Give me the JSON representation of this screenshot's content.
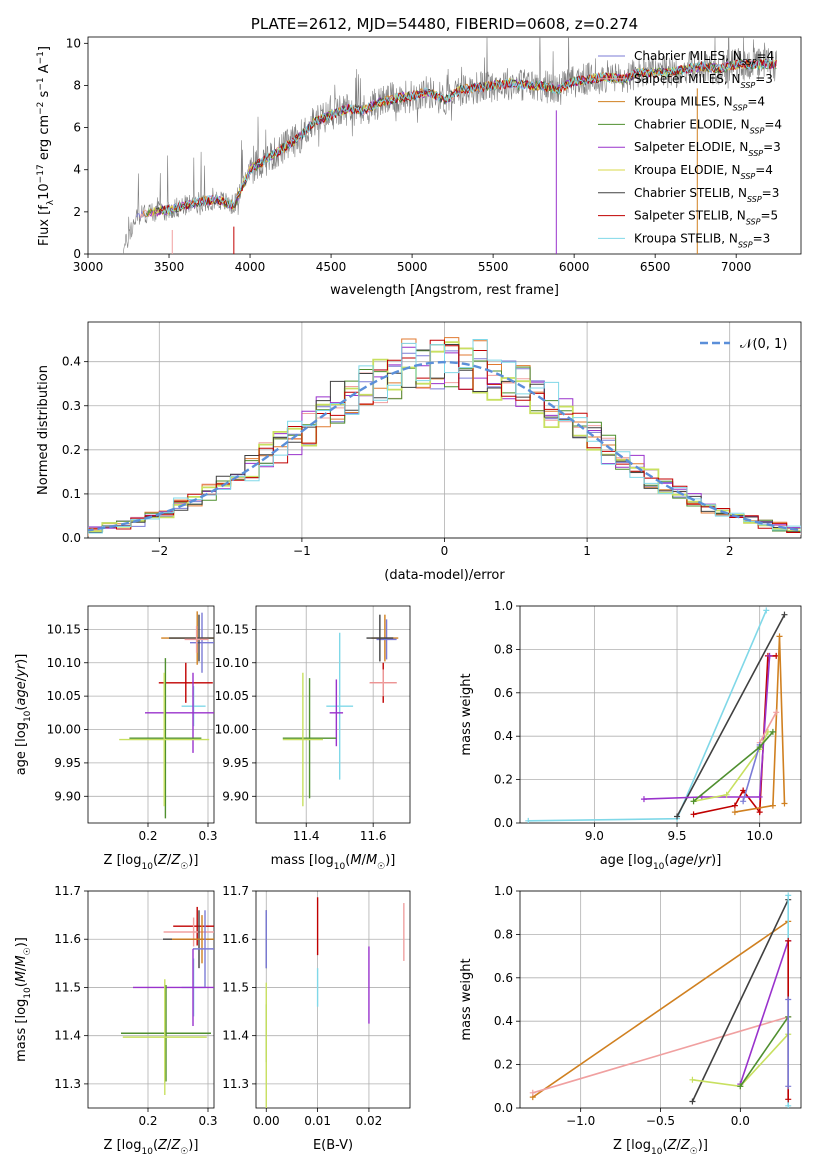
{
  "chart_data": [
    {
      "type": "line",
      "title": "PLATE=2612, MJD=54480, FIBERID=0608, z=0.274",
      "xlabel": "wavelength [Angstrom, rest frame]",
      "ylabel": "Flux [f_λ 10⁻¹⁷ erg cm⁻² s⁻¹ A⁻¹]",
      "xlim": [
        3000,
        7400
      ],
      "ylim": [
        0,
        10.3
      ],
      "xticks": [
        "3000",
        "3500",
        "4000",
        "4500",
        "5000",
        "5500",
        "6000",
        "6500",
        "7000"
      ],
      "yticks": [
        "0",
        "2",
        "4",
        "6",
        "8",
        "10"
      ],
      "grid": false,
      "legend_position": "right",
      "observed_spectrum": {
        "color": "#808080",
        "x": [
          3210,
          3300,
          3400,
          3500,
          3600,
          3700,
          3800,
          3900,
          4000,
          4100,
          4200,
          4300,
          4400,
          4500,
          4600,
          4700,
          4800,
          4900,
          5000,
          5100,
          5200,
          5300,
          5400,
          5500,
          5600,
          5700,
          5800,
          5900,
          6000,
          6100,
          6200,
          6300,
          6400,
          6500,
          6600,
          6700,
          6800,
          6900,
          7000,
          7100,
          7200
        ],
        "y": [
          0.0,
          1.8,
          2.0,
          2.1,
          2.3,
          2.5,
          2.6,
          2.3,
          4.0,
          4.5,
          5.0,
          5.5,
          6.3,
          6.6,
          6.9,
          6.8,
          7.2,
          7.4,
          7.5,
          7.7,
          7.3,
          7.8,
          7.9,
          8.0,
          8.1,
          8.0,
          8.0,
          7.8,
          8.2,
          8.3,
          8.4,
          8.3,
          8.6,
          8.6,
          8.6,
          8.8,
          8.9,
          8.8,
          9.0,
          9.0,
          9.0
        ]
      },
      "series": [
        {
          "name": "Chabrier MILES, N_SSP=4",
          "sub": "SSP",
          "label_a": "Chabrier MILES, N",
          "label_b": "=4",
          "color": "#7b7bd6"
        },
        {
          "name": "Salpeter MILES, N_SSP=3",
          "sub": "SSP",
          "label_a": "Salpeter MILES, N",
          "label_b": "=3",
          "color": "#f0a0a0"
        },
        {
          "name": "Kroupa MILES, N_SSP=4",
          "sub": "SSP",
          "label_a": "Kroupa MILES, N",
          "label_b": "=4",
          "color": "#d08020"
        },
        {
          "name": "Chabrier ELODIE, N_SSP=4",
          "sub": "SSP",
          "label_a": "Chabrier ELODIE, N",
          "label_b": "=4",
          "color": "#4f8f2f"
        },
        {
          "name": "Salpeter ELODIE, N_SSP=3",
          "sub": "SSP",
          "label_a": "Salpeter ELODIE, N",
          "label_b": "=3",
          "color": "#9932cc"
        },
        {
          "name": "Kroupa ELODIE, N_SSP=4",
          "sub": "SSP",
          "label_a": "Kroupa ELODIE, N",
          "label_b": "=4",
          "color": "#d9d94a"
        },
        {
          "name": "Chabrier STELIB, N_SSP=3",
          "sub": "SSP",
          "label_a": "Chabrier STELIB, N",
          "label_b": "=3",
          "color": "#404040"
        },
        {
          "name": "Salpeter STELIB, N_SSP=5",
          "sub": "SSP",
          "label_a": "Salpeter STELIB, N",
          "label_b": "=5",
          "color": "#c00000"
        },
        {
          "name": "Kroupa STELIB, N_SSP=3",
          "sub": "SSP",
          "label_a": "Kroupa STELIB, N",
          "label_b": "=3",
          "color": "#80d8e8"
        }
      ]
    },
    {
      "type": "line",
      "title": "",
      "xlabel": "(data-model)/error",
      "ylabel": "Normed distribution",
      "xlim": [
        -2.5,
        2.5
      ],
      "ylim": [
        0,
        0.49
      ],
      "xticks": [
        "−2",
        "−1",
        "0",
        "1",
        "2"
      ],
      "yticks": [
        "0.0",
        "0.1",
        "0.2",
        "0.3",
        "0.4"
      ],
      "grid": true,
      "legend_position": "top-right",
      "legend_label": "𝒩(0, 1)",
      "normal_curve_color": "#5b8fd9",
      "histogram_colors": [
        "#7b7bd6",
        "#f0a0a0",
        "#e07a30",
        "#4f8f2f",
        "#9932cc",
        "#c8e060",
        "#404040",
        "#c00000",
        "#80d8e8"
      ]
    },
    {
      "type": "scatter",
      "xlabel": "Z [log₁₀(Z/Z☉)]",
      "ylabel": "age  [log₁₀(age/yr)]",
      "xlim": [
        0.1,
        0.31
      ],
      "ylim": [
        9.86,
        10.185
      ],
      "xticks": [
        "0.2",
        "0.3"
      ],
      "yticks": [
        "9.90",
        "9.95",
        "10.00",
        "10.05",
        "10.10",
        "10.15"
      ],
      "grid": true,
      "points": [
        {
          "x": 0.282,
          "y": 10.137,
          "xerr": 0.06,
          "yerr": 0.04,
          "color": "#d08020"
        },
        {
          "x": 0.29,
          "y": 10.13,
          "xerr": 0.02,
          "yerr": 0.045,
          "color": "#7b7bd6"
        },
        {
          "x": 0.285,
          "y": 10.137,
          "xerr": 0.05,
          "yerr": 0.035,
          "color": "#404040"
        },
        {
          "x": 0.281,
          "y": 10.135,
          "xerr": 0.02,
          "yerr": 0.02,
          "color": "#f0a0a0"
        },
        {
          "x": 0.263,
          "y": 10.07,
          "xerr": 0.045,
          "yerr": 0.03,
          "color": "#c00000"
        },
        {
          "x": 0.276,
          "y": 10.035,
          "xerr": 0.02,
          "yerr": 0.03,
          "color": "#80d8e8"
        },
        {
          "x": 0.275,
          "y": 10.025,
          "xerr": 0.08,
          "yerr": 0.06,
          "color": "#9932cc"
        },
        {
          "x": 0.229,
          "y": 9.987,
          "xerr": 0.06,
          "yerr": 0.12,
          "color": "#4f8f2f"
        },
        {
          "x": 0.227,
          "y": 9.985,
          "xerr": 0.075,
          "yerr": 0.1,
          "color": "#c8e060"
        }
      ]
    },
    {
      "type": "scatter",
      "xlabel": "mass [log₁₀(M/M☉)]",
      "ylabel": "",
      "xlim": [
        11.25,
        11.71
      ],
      "ylim": [
        9.86,
        10.185
      ],
      "xticks": [
        "11.4",
        "11.6"
      ],
      "yticks": [
        "9.90",
        "9.95",
        "10.00",
        "10.05",
        "10.10",
        "10.15"
      ],
      "grid": true,
      "points": [
        {
          "x": 11.635,
          "y": 10.137,
          "xerr": 0.04,
          "yerr": 0.035,
          "color": "#d08020"
        },
        {
          "x": 11.64,
          "y": 10.135,
          "xerr": 0.03,
          "yerr": 0.03,
          "color": "#7b7bd6"
        },
        {
          "x": 11.62,
          "y": 10.137,
          "xerr": 0.04,
          "yerr": 0.035,
          "color": "#404040"
        },
        {
          "x": 11.63,
          "y": 10.07,
          "xerr": 0.04,
          "yerr": 0.03,
          "color": "#c00000"
        },
        {
          "x": 11.63,
          "y": 10.07,
          "xerr": 0.04,
          "yerr": 0.02,
          "color": "#f0a0a0"
        },
        {
          "x": 11.5,
          "y": 10.035,
          "xerr": 0.04,
          "yerr": 0.11,
          "color": "#80d8e8"
        },
        {
          "x": 11.49,
          "y": 10.025,
          "xerr": 0.02,
          "yerr": 0.05,
          "color": "#9932cc"
        },
        {
          "x": 11.41,
          "y": 9.987,
          "xerr": 0.08,
          "yerr": 0.09,
          "color": "#4f8f2f"
        },
        {
          "x": 11.39,
          "y": 9.985,
          "xerr": 0.06,
          "yerr": 0.1,
          "color": "#c8e060"
        }
      ]
    },
    {
      "type": "line",
      "xlabel": "age  [log₁₀(age/yr)]",
      "ylabel": "mass weight",
      "xlim": [
        8.55,
        10.25
      ],
      "ylim": [
        0,
        1.0
      ],
      "xticks": [
        "9.0",
        "9.5",
        "10.0"
      ],
      "yticks": [
        "0.0",
        "0.2",
        "0.4",
        "0.6",
        "0.8",
        "1.0"
      ],
      "grid": true,
      "series": [
        {
          "color": "#80d8e8",
          "x": [
            8.6,
            9.5,
            10.04
          ],
          "y": [
            0.01,
            0.02,
            0.98
          ]
        },
        {
          "color": "#404040",
          "x": [
            9.5,
            10.15
          ],
          "y": [
            0.03,
            0.96
          ]
        },
        {
          "color": "#c00000",
          "x": [
            9.6,
            9.85,
            9.9,
            10.0,
            10.05,
            10.1
          ],
          "y": [
            0.04,
            0.08,
            0.15,
            0.05,
            0.77,
            0.77
          ]
        },
        {
          "color": "#d08020",
          "x": [
            9.85,
            10.08,
            10.12,
            10.15
          ],
          "y": [
            0.05,
            0.08,
            0.86,
            0.09
          ]
        },
        {
          "color": "#9932cc",
          "x": [
            9.3,
            9.65,
            10.0,
            10.06
          ],
          "y": [
            0.11,
            0.12,
            0.12,
            0.77
          ]
        },
        {
          "color": "#c8e060",
          "x": [
            9.6,
            9.8,
            10.0,
            10.05
          ],
          "y": [
            0.1,
            0.13,
            0.34,
            0.42
          ]
        },
        {
          "color": "#f0a0a0",
          "x": [
            10.0,
            10.1
          ],
          "y": [
            0.37,
            0.51
          ]
        },
        {
          "color": "#7b7bd6",
          "x": [
            9.9,
            10.0
          ],
          "y": [
            0.1,
            0.36
          ]
        },
        {
          "color": "#4f8f2f",
          "x": [
            9.6,
            10.0,
            10.08
          ],
          "y": [
            0.1,
            0.35,
            0.42
          ]
        }
      ]
    },
    {
      "type": "scatter",
      "xlabel": "Z [log₁₀(Z/Z☉)]",
      "ylabel": "mass [log₁₀(M/M☉)]",
      "xlim": [
        0.1,
        0.31
      ],
      "ylim": [
        11.25,
        11.7
      ],
      "xticks": [
        "0.2",
        "0.3"
      ],
      "yticks": [
        "11.3",
        "11.4",
        "11.5",
        "11.6",
        "11.7"
      ],
      "grid": true,
      "points": [
        {
          "x": 0.282,
          "y": 11.627,
          "xerr": 0.04,
          "yerr": 0.04,
          "color": "#c00000"
        },
        {
          "x": 0.276,
          "y": 11.615,
          "xerr": 0.05,
          "yerr": 0.03,
          "color": "#f0a0a0"
        },
        {
          "x": 0.285,
          "y": 11.6,
          "xerr": 0.06,
          "yerr": 0.06,
          "color": "#404040"
        },
        {
          "x": 0.29,
          "y": 11.6,
          "xerr": 0.05,
          "yerr": 0.05,
          "color": "#d08020"
        },
        {
          "x": 0.295,
          "y": 11.58,
          "xerr": 0.02,
          "yerr": 0.08,
          "color": "#7b7bd6"
        },
        {
          "x": 0.276,
          "y": 11.5,
          "xerr": 0.02,
          "yerr": 0.06,
          "color": "#80d8e8"
        },
        {
          "x": 0.275,
          "y": 11.5,
          "xerr": 0.1,
          "yerr": 0.08,
          "color": "#9932cc"
        },
        {
          "x": 0.23,
          "y": 11.405,
          "xerr": 0.075,
          "yerr": 0.1,
          "color": "#4f8f2f"
        },
        {
          "x": 0.228,
          "y": 11.397,
          "xerr": 0.07,
          "yerr": 0.12,
          "color": "#c8e060"
        }
      ]
    },
    {
      "type": "scatter",
      "xlabel": "E(B-V)",
      "ylabel": "",
      "xlim": [
        -0.002,
        0.028
      ],
      "ylim": [
        11.25,
        11.7
      ],
      "xticks": [
        "0.00",
        "0.01",
        "0.02"
      ],
      "yticks": [
        "11.3",
        "11.4",
        "11.5",
        "11.6",
        "11.7"
      ],
      "grid": true,
      "points": [
        {
          "x": 0.0,
          "y": 11.6,
          "yerr": 0.06,
          "color": "#404040"
        },
        {
          "x": 0.0,
          "y": 11.6,
          "yerr": 0.06,
          "color": "#7b7bd6"
        },
        {
          "x": 0.0,
          "y": 11.405,
          "yerr": 0.06,
          "color": "#4f8f2f"
        },
        {
          "x": 0.0,
          "y": 11.38,
          "yerr": 0.13,
          "color": "#c8e060"
        },
        {
          "x": 0.01,
          "y": 11.627,
          "yerr": 0.06,
          "color": "#c00000"
        },
        {
          "x": 0.01,
          "y": 11.5,
          "yerr": 0.04,
          "color": "#80d8e8"
        },
        {
          "x": 0.02,
          "y": 11.505,
          "yerr": 0.08,
          "color": "#9932cc"
        },
        {
          "x": 0.0268,
          "y": 11.615,
          "yerr": 0.06,
          "color": "#f0a0a0"
        }
      ]
    },
    {
      "type": "line",
      "xlabel": "Z [log₁₀(Z/Z☉)]",
      "ylabel": "mass weight",
      "xlim": [
        -1.38,
        0.38
      ],
      "ylim": [
        0,
        1.0
      ],
      "xticks": [
        "−1.0",
        "−0.5",
        "0.0"
      ],
      "yticks": [
        "0.0",
        "0.2",
        "0.4",
        "0.6",
        "0.8",
        "1.0"
      ],
      "grid": true,
      "series": [
        {
          "color": "#d08020",
          "x": [
            -1.3,
            0.3
          ],
          "y": [
            0.05,
            0.86
          ]
        },
        {
          "color": "#f0a0a0",
          "x": [
            -1.3,
            0.3
          ],
          "y": [
            0.07,
            0.42
          ]
        },
        {
          "color": "#404040",
          "x": [
            -0.3,
            0.3
          ],
          "y": [
            0.03,
            0.96
          ]
        },
        {
          "color": "#9932cc",
          "x": [
            0.0,
            0.3
          ],
          "y": [
            0.11,
            0.77
          ]
        },
        {
          "color": "#c8e060",
          "x": [
            -0.3,
            0.0,
            0.3
          ],
          "y": [
            0.13,
            0.1,
            0.34
          ]
        },
        {
          "color": "#4f8f2f",
          "x": [
            0.0,
            0.3
          ],
          "y": [
            0.1,
            0.42
          ]
        },
        {
          "color": "#80d8e8",
          "x": [
            0.3,
            0.3
          ],
          "y": [
            0.01,
            0.98
          ]
        },
        {
          "color": "#c00000",
          "x": [
            0.3,
            0.3
          ],
          "y": [
            0.04,
            0.77
          ]
        },
        {
          "color": "#7b7bd6",
          "x": [
            0.3,
            0.3
          ],
          "y": [
            0.1,
            0.5
          ]
        }
      ]
    }
  ]
}
